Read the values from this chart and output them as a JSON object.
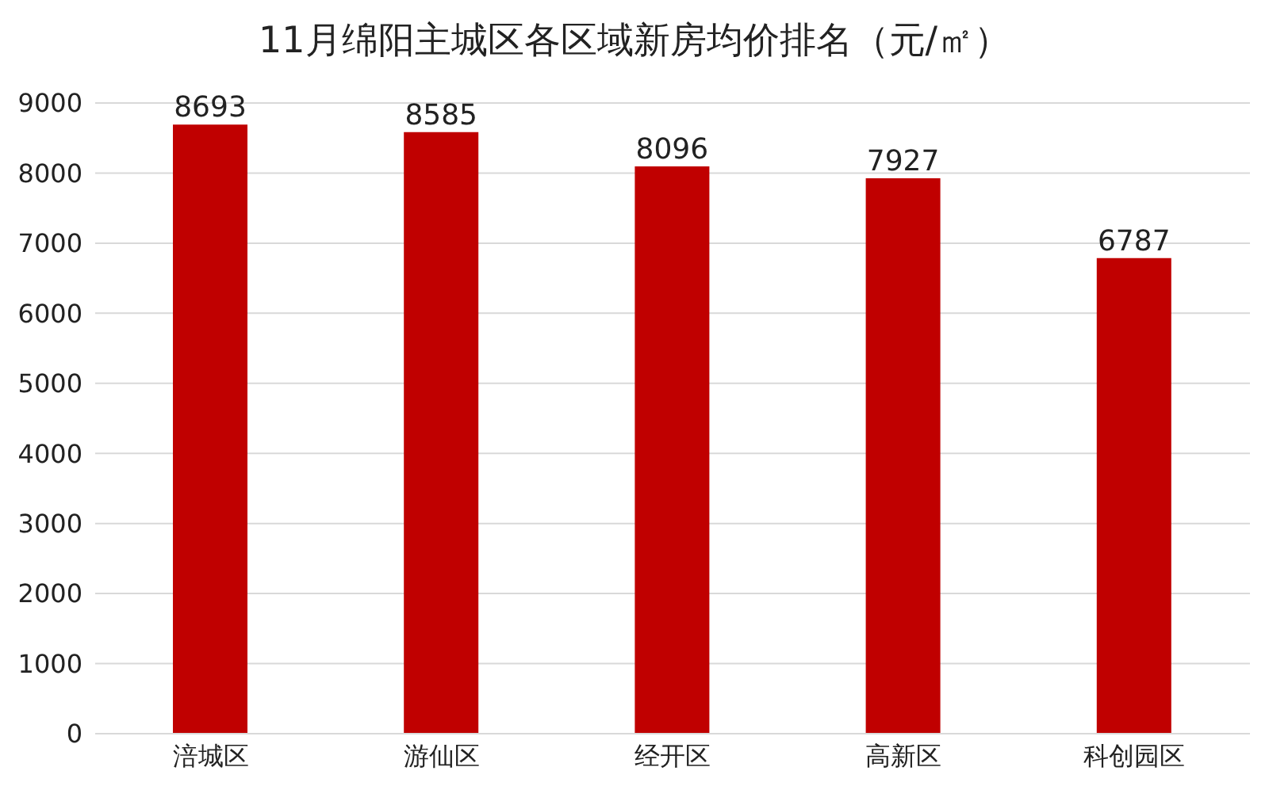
{
  "chart_data": {
    "type": "bar",
    "title": "11月绵阳主城区各区域新房均价排名（元/㎡）",
    "categories": [
      "涪城区",
      "游仙区",
      "经开区",
      "高新区",
      "科创园区"
    ],
    "values": [
      8693,
      8585,
      8096,
      7927,
      6787
    ],
    "color": "#c00000",
    "ylim": [
      0,
      9000
    ],
    "yticks": [
      0,
      1000,
      2000,
      3000,
      4000,
      5000,
      6000,
      7000,
      8000,
      9000
    ],
    "grid": "y",
    "data_labels": true
  }
}
